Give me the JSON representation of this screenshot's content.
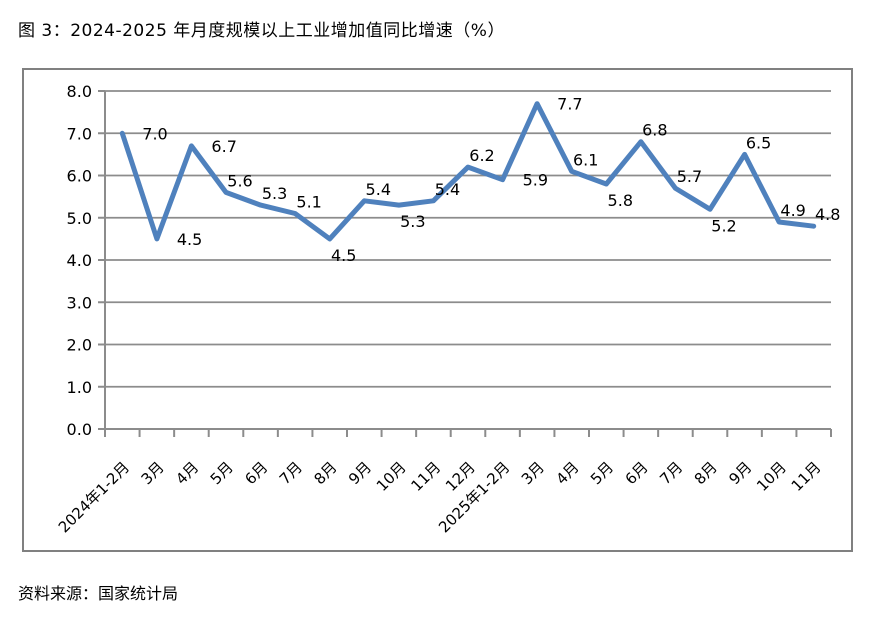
{
  "page": {
    "title": "图 3：2024-2025 年月度规模以上工业增加值同比增速（%）",
    "source": "资料来源：国家统计局"
  },
  "chart_data": {
    "type": "line",
    "title": "2024-2025 年月度规模以上工业增加值同比增速（%）",
    "xlabel": "",
    "ylabel": "",
    "categories": [
      "2024年1-2月",
      "3月",
      "4月",
      "5月",
      "6月",
      "7月",
      "8月",
      "9月",
      "10月",
      "11月",
      "12月",
      "2025年1-2月",
      "3月",
      "4月",
      "5月",
      "6月",
      "7月",
      "8月",
      "9月",
      "10月",
      "11月"
    ],
    "values": [
      7.0,
      4.5,
      6.7,
      5.6,
      5.3,
      5.1,
      4.5,
      5.4,
      5.3,
      5.4,
      6.2,
      5.9,
      7.7,
      6.1,
      5.8,
      6.8,
      5.7,
      5.2,
      6.5,
      4.9,
      4.8
    ],
    "ylim": [
      0.0,
      8.0
    ],
    "ytick_step": 1.0,
    "ytick_decimals": 1,
    "grid": true,
    "legend": "none",
    "data_labels": true,
    "label_placements": [
      "right",
      "right",
      "right",
      "above",
      "above",
      "above",
      "below",
      "above",
      "below",
      "above",
      "above",
      "right",
      "right",
      "above",
      "below",
      "above",
      "above",
      "below",
      "above",
      "above",
      "above"
    ],
    "x_label_rotation_deg": -45,
    "colors": {
      "line": "#4F81BD",
      "gridline": "#8C8C8C",
      "axis": "#8C8C8C",
      "frame_border": "#808080",
      "text": "#000000",
      "background": "#FFFFFF"
    }
  }
}
